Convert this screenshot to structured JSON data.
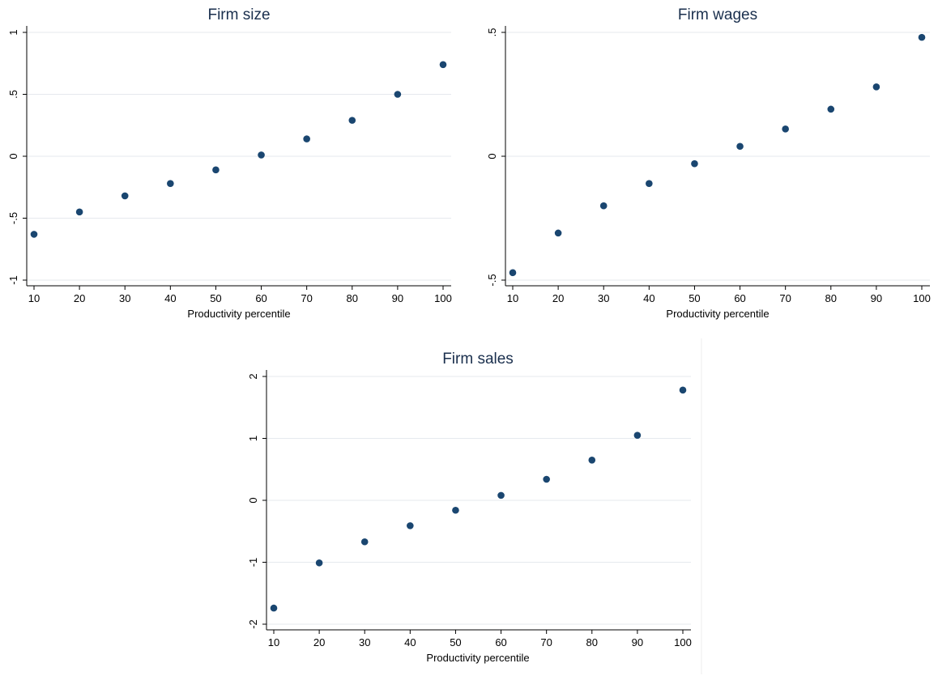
{
  "colors": {
    "marker": "#1a4670",
    "title": "#1a2f4d",
    "grid": "#e6e9ee",
    "axis": "#000000"
  },
  "chart_data": [
    {
      "type": "scatter",
      "title": "Firm size",
      "xlabel": "Productivity percentile",
      "ylabel": "",
      "x": [
        10,
        20,
        30,
        40,
        50,
        60,
        70,
        80,
        90,
        100
      ],
      "y": [
        -0.63,
        -0.45,
        -0.32,
        -0.22,
        -0.11,
        0.01,
        0.14,
        0.29,
        0.5,
        0.74
      ],
      "xlim": [
        10,
        100
      ],
      "ylim": [
        -1,
        1
      ],
      "xticks": [
        10,
        20,
        30,
        40,
        50,
        60,
        70,
        80,
        90,
        100
      ],
      "xtick_labels": [
        "10",
        "20",
        "30",
        "40",
        "50",
        "60",
        "70",
        "80",
        "90",
        "100"
      ],
      "yticks": [
        -1,
        -0.5,
        0,
        0.5,
        1
      ],
      "ytick_labels": [
        "-1",
        "-.5",
        "0",
        ".5",
        "1"
      ],
      "grid": true
    },
    {
      "type": "scatter",
      "title": "Firm wages",
      "xlabel": "Productivity percentile",
      "ylabel": "",
      "x": [
        10,
        20,
        30,
        40,
        50,
        60,
        70,
        80,
        90,
        100
      ],
      "y": [
        -0.47,
        -0.31,
        -0.2,
        -0.11,
        -0.03,
        0.04,
        0.11,
        0.19,
        0.28,
        0.48
      ],
      "xlim": [
        10,
        100
      ],
      "ylim": [
        -0.5,
        0.5
      ],
      "xticks": [
        10,
        20,
        30,
        40,
        50,
        60,
        70,
        80,
        90,
        100
      ],
      "xtick_labels": [
        "10",
        "20",
        "30",
        "40",
        "50",
        "60",
        "70",
        "80",
        "90",
        "100"
      ],
      "yticks": [
        -0.5,
        0,
        0.5
      ],
      "ytick_labels": [
        "-.5",
        "0",
        ".5"
      ],
      "grid": true
    },
    {
      "type": "scatter",
      "title": "Firm sales",
      "xlabel": "Productivity percentile",
      "ylabel": "",
      "x": [
        10,
        20,
        30,
        40,
        50,
        60,
        70,
        80,
        90,
        100
      ],
      "y": [
        -1.74,
        -1.01,
        -0.67,
        -0.41,
        -0.16,
        0.08,
        0.34,
        0.65,
        1.05,
        1.78
      ],
      "xlim": [
        10,
        100
      ],
      "ylim": [
        -2,
        2
      ],
      "xticks": [
        10,
        20,
        30,
        40,
        50,
        60,
        70,
        80,
        90,
        100
      ],
      "xtick_labels": [
        "10",
        "20",
        "30",
        "40",
        "50",
        "60",
        "70",
        "80",
        "90",
        "100"
      ],
      "yticks": [
        -2,
        -1,
        0,
        1,
        2
      ],
      "ytick_labels": [
        "-2",
        "-1",
        "0",
        "1",
        "2"
      ],
      "grid": true
    }
  ]
}
